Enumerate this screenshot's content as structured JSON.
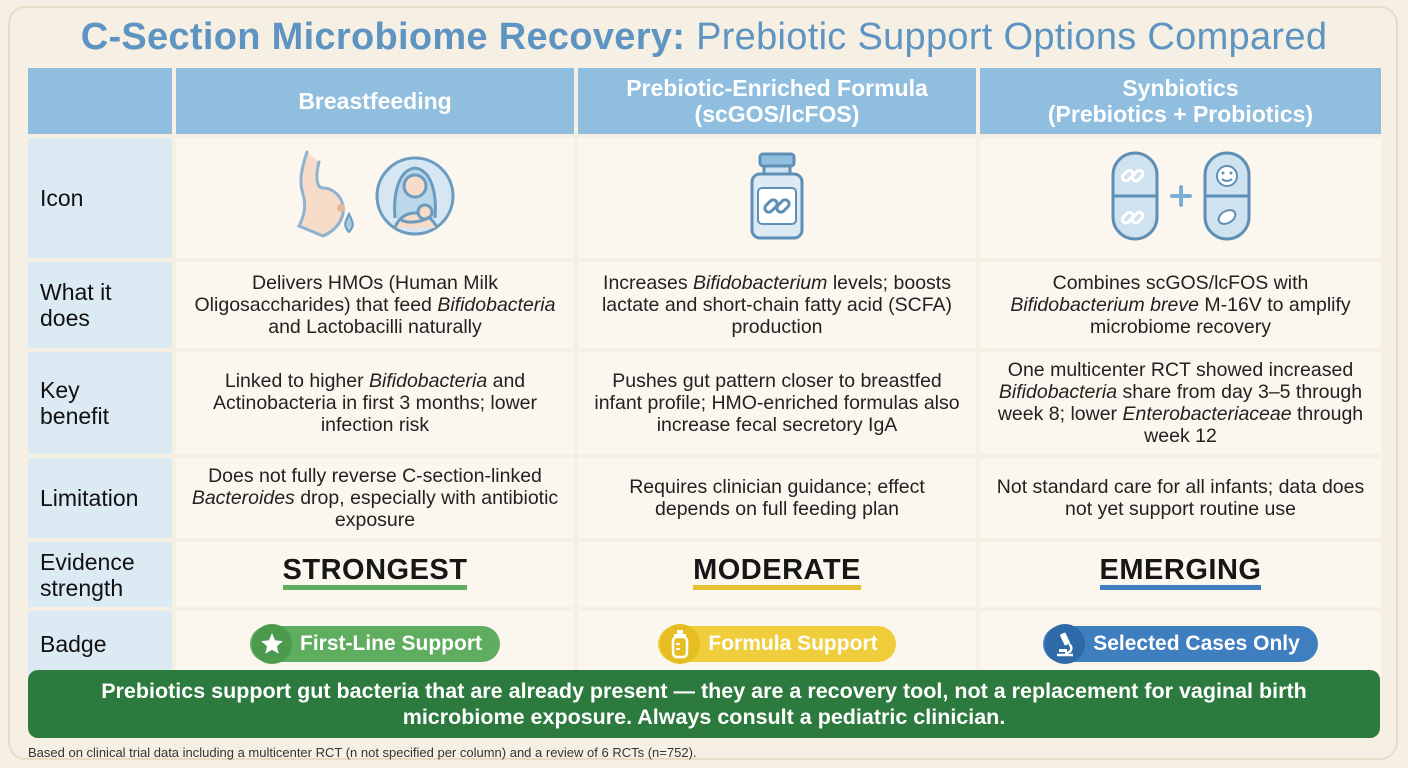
{
  "title": {
    "bold": "C-Section Microbiome Recovery:",
    "light": "Prebiotic Support Options Compared"
  },
  "columns": {
    "breastfeeding": "Breastfeeding",
    "formula_line1": "Prebiotic-Enriched Formula",
    "formula_line2": "(scGOS/lcFOS)",
    "synbiotics_line1": "Synbiotics",
    "synbiotics_line2": "(Prebiotics + Probiotics)"
  },
  "row_labels": {
    "icon": "Icon",
    "what_line1": "What it",
    "what_line2": "does",
    "key_line1": "Key",
    "key_line2": "benefit",
    "limitation": "Limitation",
    "evidence_line1": "Evidence",
    "evidence_line2": "strength",
    "badge": "Badge"
  },
  "icons": {
    "breastfeeding": [
      "breast-milk-drop-icon",
      "mother-holding-baby-icon"
    ],
    "formula": [
      "formula-bottle-chain-icon"
    ],
    "synbiotics": [
      "prebiotic-capsule-icon",
      "plus-icon",
      "probiotic-capsule-icon"
    ]
  },
  "what_it_does": {
    "breastfeeding": {
      "a": "Delivers HMOs (Human Milk Oligosaccharides) that feed ",
      "i": "Bifidobacteria",
      "b": " and Lactobacilli naturally"
    },
    "formula": {
      "a": "Increases ",
      "i": "Bifidobacterium",
      "b": " levels; boosts lactate and short-chain fatty acid (SCFA) production"
    },
    "synbiotics": {
      "a": "Combines scGOS/lcFOS with ",
      "i": "Bifidobacterium breve",
      "b": " M-16V to amplify microbiome recovery"
    }
  },
  "key_benefit": {
    "breastfeeding": {
      "a": "Linked to higher ",
      "i": "Bifidobacteria",
      "b": " and Actinobacteria in first 3 months; lower infection risk"
    },
    "formula": {
      "text": "Pushes gut pattern closer to breastfed infant profile; HMO-enriched formulas also increase fecal secretory IgA"
    },
    "synbiotics": {
      "a": "One multicenter RCT showed increased ",
      "i": "Bifidobacteria",
      "b": " share from day 3–5 through week 8; lower ",
      "i2": "Enterobacteriaceae",
      "c": " through week 12"
    }
  },
  "limitation": {
    "breastfeeding": {
      "a": "Does not fully reverse C-section-linked ",
      "i": "Bacteroides",
      "b": " drop, especially with antibiotic exposure"
    },
    "formula": "Requires clinician guidance; effect depends on full feeding plan",
    "synbiotics": "Not standard care for all infants; data does not yet support routine use"
  },
  "evidence": {
    "breastfeeding": {
      "label": "STRONGEST",
      "color": "#5fae5f"
    },
    "formula": {
      "label": "MODERATE",
      "color": "#e6c233"
    },
    "synbiotics": {
      "label": "EMERGING",
      "color": "#3f7fc0"
    }
  },
  "badges": {
    "breastfeeding": {
      "label": "First-Line Support",
      "icon": "star-icon",
      "color": "#5fae5f",
      "icon_bg": "#4c9a4d"
    },
    "formula": {
      "label": "Formula Support",
      "icon": "baby-bottle-icon",
      "color": "#f0cd3b",
      "icon_bg": "#e6bd22"
    },
    "synbiotics": {
      "label": "Selected Cases Only",
      "icon": "microscope-icon",
      "color": "#3f7fc0",
      "icon_bg": "#2f6aa8"
    }
  },
  "banner": "Prebiotics support gut bacteria that are already present — they are a recovery tool, not a replacement for vaginal birth microbiome exposure. Always consult a pediatric clinician.",
  "footnote": "Based on clinical trial data including a multicenter RCT (n not specified per column) and a review of 6 RCTs (n=752)."
}
